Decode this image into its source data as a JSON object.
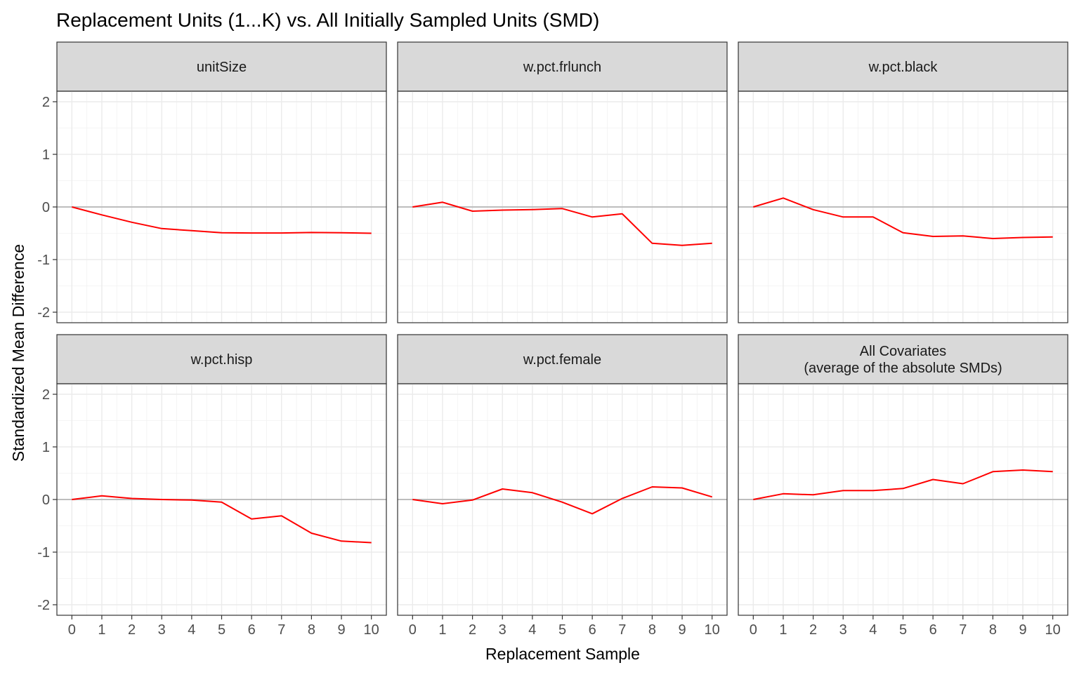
{
  "chart_data": {
    "type": "line",
    "title": "Replacement Units (1...K) vs. All Initially Sampled Units (SMD)",
    "xlabel": "Replacement Sample",
    "ylabel": "Standardized Mean Difference",
    "x": [
      0,
      1,
      2,
      3,
      4,
      5,
      6,
      7,
      8,
      9,
      10
    ],
    "x_ticks": [
      "0",
      "1",
      "2",
      "3",
      "4",
      "5",
      "6",
      "7",
      "8",
      "9",
      "10"
    ],
    "y_ticks": [
      "-2",
      "-1",
      "0",
      "1",
      "2"
    ],
    "ylim": [
      -2.2,
      2.2
    ],
    "xlim": [
      -0.5,
      10.5
    ],
    "grid": true,
    "reference_line_y": 0,
    "line_color": "#ff0000",
    "facet_layout": {
      "rows": 2,
      "cols": 3
    },
    "panels": [
      {
        "label": [
          "unitSize"
        ],
        "values": [
          0,
          -0.15,
          -0.29,
          -0.41,
          -0.45,
          -0.49,
          -0.495,
          -0.495,
          -0.485,
          -0.49,
          -0.5
        ]
      },
      {
        "label": [
          "w.pct.frlunch"
        ],
        "values": [
          0,
          0.09,
          -0.08,
          -0.06,
          -0.05,
          -0.03,
          -0.19,
          -0.13,
          -0.69,
          -0.73,
          -0.69
        ]
      },
      {
        "label": [
          "w.pct.black"
        ],
        "values": [
          0,
          0.17,
          -0.05,
          -0.19,
          -0.19,
          -0.49,
          -0.56,
          -0.55,
          -0.6,
          -0.58,
          -0.57
        ]
      },
      {
        "label": [
          "w.pct.hisp"
        ],
        "values": [
          0,
          0.07,
          0.02,
          0,
          -0.01,
          -0.05,
          -0.37,
          -0.31,
          -0.64,
          -0.79,
          -0.82
        ]
      },
      {
        "label": [
          "w.pct.female"
        ],
        "values": [
          0,
          -0.08,
          -0.01,
          0.2,
          0.13,
          -0.05,
          -0.27,
          0.02,
          0.24,
          0.22,
          0.05
        ]
      },
      {
        "label": [
          "All Covariates",
          "(average of the absolute SMDs)"
        ],
        "values": [
          0,
          0.11,
          0.09,
          0.17,
          0.17,
          0.21,
          0.38,
          0.3,
          0.53,
          0.56,
          0.53
        ]
      }
    ]
  }
}
